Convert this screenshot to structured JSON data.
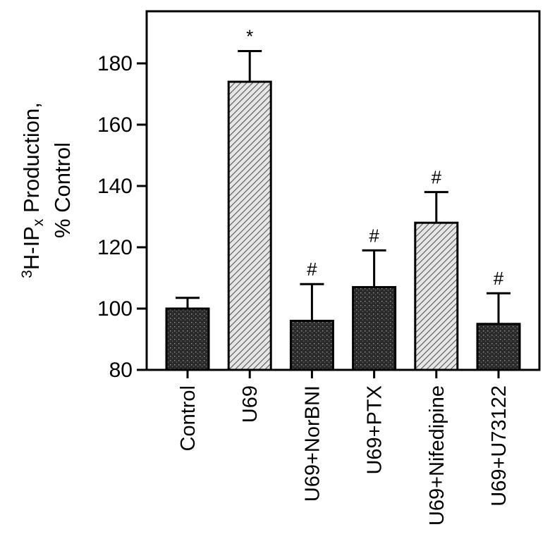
{
  "chart_data": {
    "type": "bar",
    "title": "",
    "ylabel": {
      "prefix_sup": "3",
      "line1_main": "H-IP",
      "line1_sub": "x",
      "line1_rest": " Production,",
      "line2": "% Control"
    },
    "xlabel": "",
    "ylim": [
      80,
      197
    ],
    "yticks": [
      80,
      100,
      120,
      140,
      160,
      180
    ],
    "categories": [
      "Control",
      "U69",
      "U69+NorBNI",
      "U69+PTX",
      "U69+Nifedipine",
      "U69+U73122"
    ],
    "values": [
      100,
      174,
      96,
      107,
      128,
      95
    ],
    "errors": [
      3.5,
      10,
      12,
      12,
      10,
      10
    ],
    "significance": [
      "",
      "*",
      "#",
      "#",
      "#",
      "#"
    ],
    "patterns": [
      "dark",
      "light",
      "dark",
      "dark",
      "light",
      "dark"
    ],
    "colors": {
      "dark_fill": "#2a2a2a",
      "light_fill": "#cfcfcf",
      "axis": "#000000"
    }
  }
}
